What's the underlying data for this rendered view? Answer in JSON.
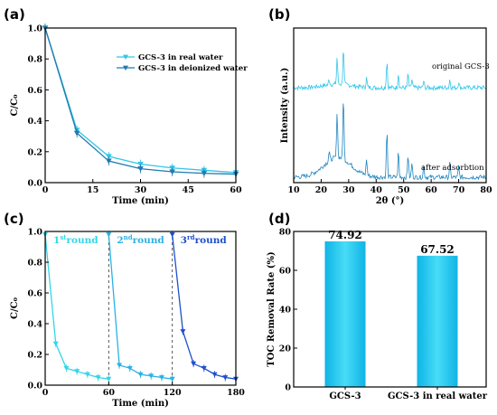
{
  "chart_data": [
    {
      "panel": "(a)",
      "type": "line",
      "xlabel": "Time (min)",
      "ylabel": "C/C₀",
      "xlim": [
        0,
        60
      ],
      "ylim": [
        0,
        1.0
      ],
      "xticks": [
        0,
        15,
        30,
        45,
        60
      ],
      "yticks": [
        0.0,
        0.2,
        0.4,
        0.6,
        0.8,
        1.0
      ],
      "legend_position": "top-right",
      "series": [
        {
          "name": "GCS-3 in real water",
          "color": "#33c6e8",
          "marker": "triangle-down",
          "x": [
            0,
            10,
            20,
            30,
            40,
            50,
            60
          ],
          "y": [
            1.0,
            0.34,
            0.17,
            0.12,
            0.095,
            0.08,
            0.065
          ]
        },
        {
          "name": "GCS-3 in deionized water",
          "color": "#1f7bb0",
          "marker": "triangle-down",
          "x": [
            0,
            10,
            20,
            30,
            40,
            50,
            60
          ],
          "y": [
            1.0,
            0.32,
            0.14,
            0.09,
            0.07,
            0.06,
            0.055
          ]
        }
      ]
    },
    {
      "panel": "(b)",
      "type": "line",
      "xlabel": "2θ (°)",
      "ylabel": "Intensity (a.u.)",
      "xlim": [
        10,
        80
      ],
      "xticks": [
        10,
        20,
        30,
        40,
        50,
        60,
        70,
        80
      ],
      "color": "#33c6e8",
      "annotations": [
        "original GCS-3",
        "after adsorbtion"
      ],
      "peaks_2theta": [
        22.9,
        25.8,
        28.1,
        36.5,
        43.9,
        48.1,
        51.6,
        53.0,
        57.3,
        66.8,
        70.0
      ]
    },
    {
      "panel": "(c)",
      "type": "line",
      "xlabel": "Time (min)",
      "ylabel": "C/C₀",
      "xlim": [
        0,
        180
      ],
      "ylim": [
        0,
        1.0
      ],
      "xticks": [
        0,
        60,
        120,
        180
      ],
      "yticks": [
        0.0,
        0.2,
        0.4,
        0.6,
        0.8,
        1.0
      ],
      "rounds": [
        {
          "base": "1",
          "sup": "st",
          "word": "round",
          "color": "#33d6e8",
          "x": [
            0,
            10,
            20,
            30,
            40,
            50,
            60
          ],
          "y": [
            0.98,
            0.27,
            0.11,
            0.09,
            0.07,
            0.05,
            0.04
          ]
        },
        {
          "base": "2",
          "sup": "nd",
          "word": "round",
          "color": "#2ab2e6",
          "x": [
            60,
            70,
            80,
            90,
            100,
            110,
            120
          ],
          "y": [
            0.98,
            0.13,
            0.11,
            0.07,
            0.06,
            0.05,
            0.04
          ]
        },
        {
          "base": "3",
          "sup": "rd",
          "word": "round",
          "color": "#1e4fd0",
          "x": [
            120,
            130,
            140,
            150,
            160,
            170,
            180
          ],
          "y": [
            0.98,
            0.35,
            0.14,
            0.11,
            0.07,
            0.05,
            0.04
          ]
        }
      ],
      "separators_x": [
        60,
        120
      ]
    },
    {
      "panel": "(d)",
      "type": "bar",
      "ylabel": "TOC Removal Rate (%)",
      "ylim": [
        0,
        80
      ],
      "yticks": [
        0,
        20,
        40,
        60,
        80
      ],
      "categories": [
        "GCS-3",
        "GCS-3 in real water"
      ],
      "values": [
        74.92,
        67.52
      ],
      "value_labels": [
        "74.92",
        "67.52"
      ],
      "color": "#1cc4ee"
    }
  ]
}
